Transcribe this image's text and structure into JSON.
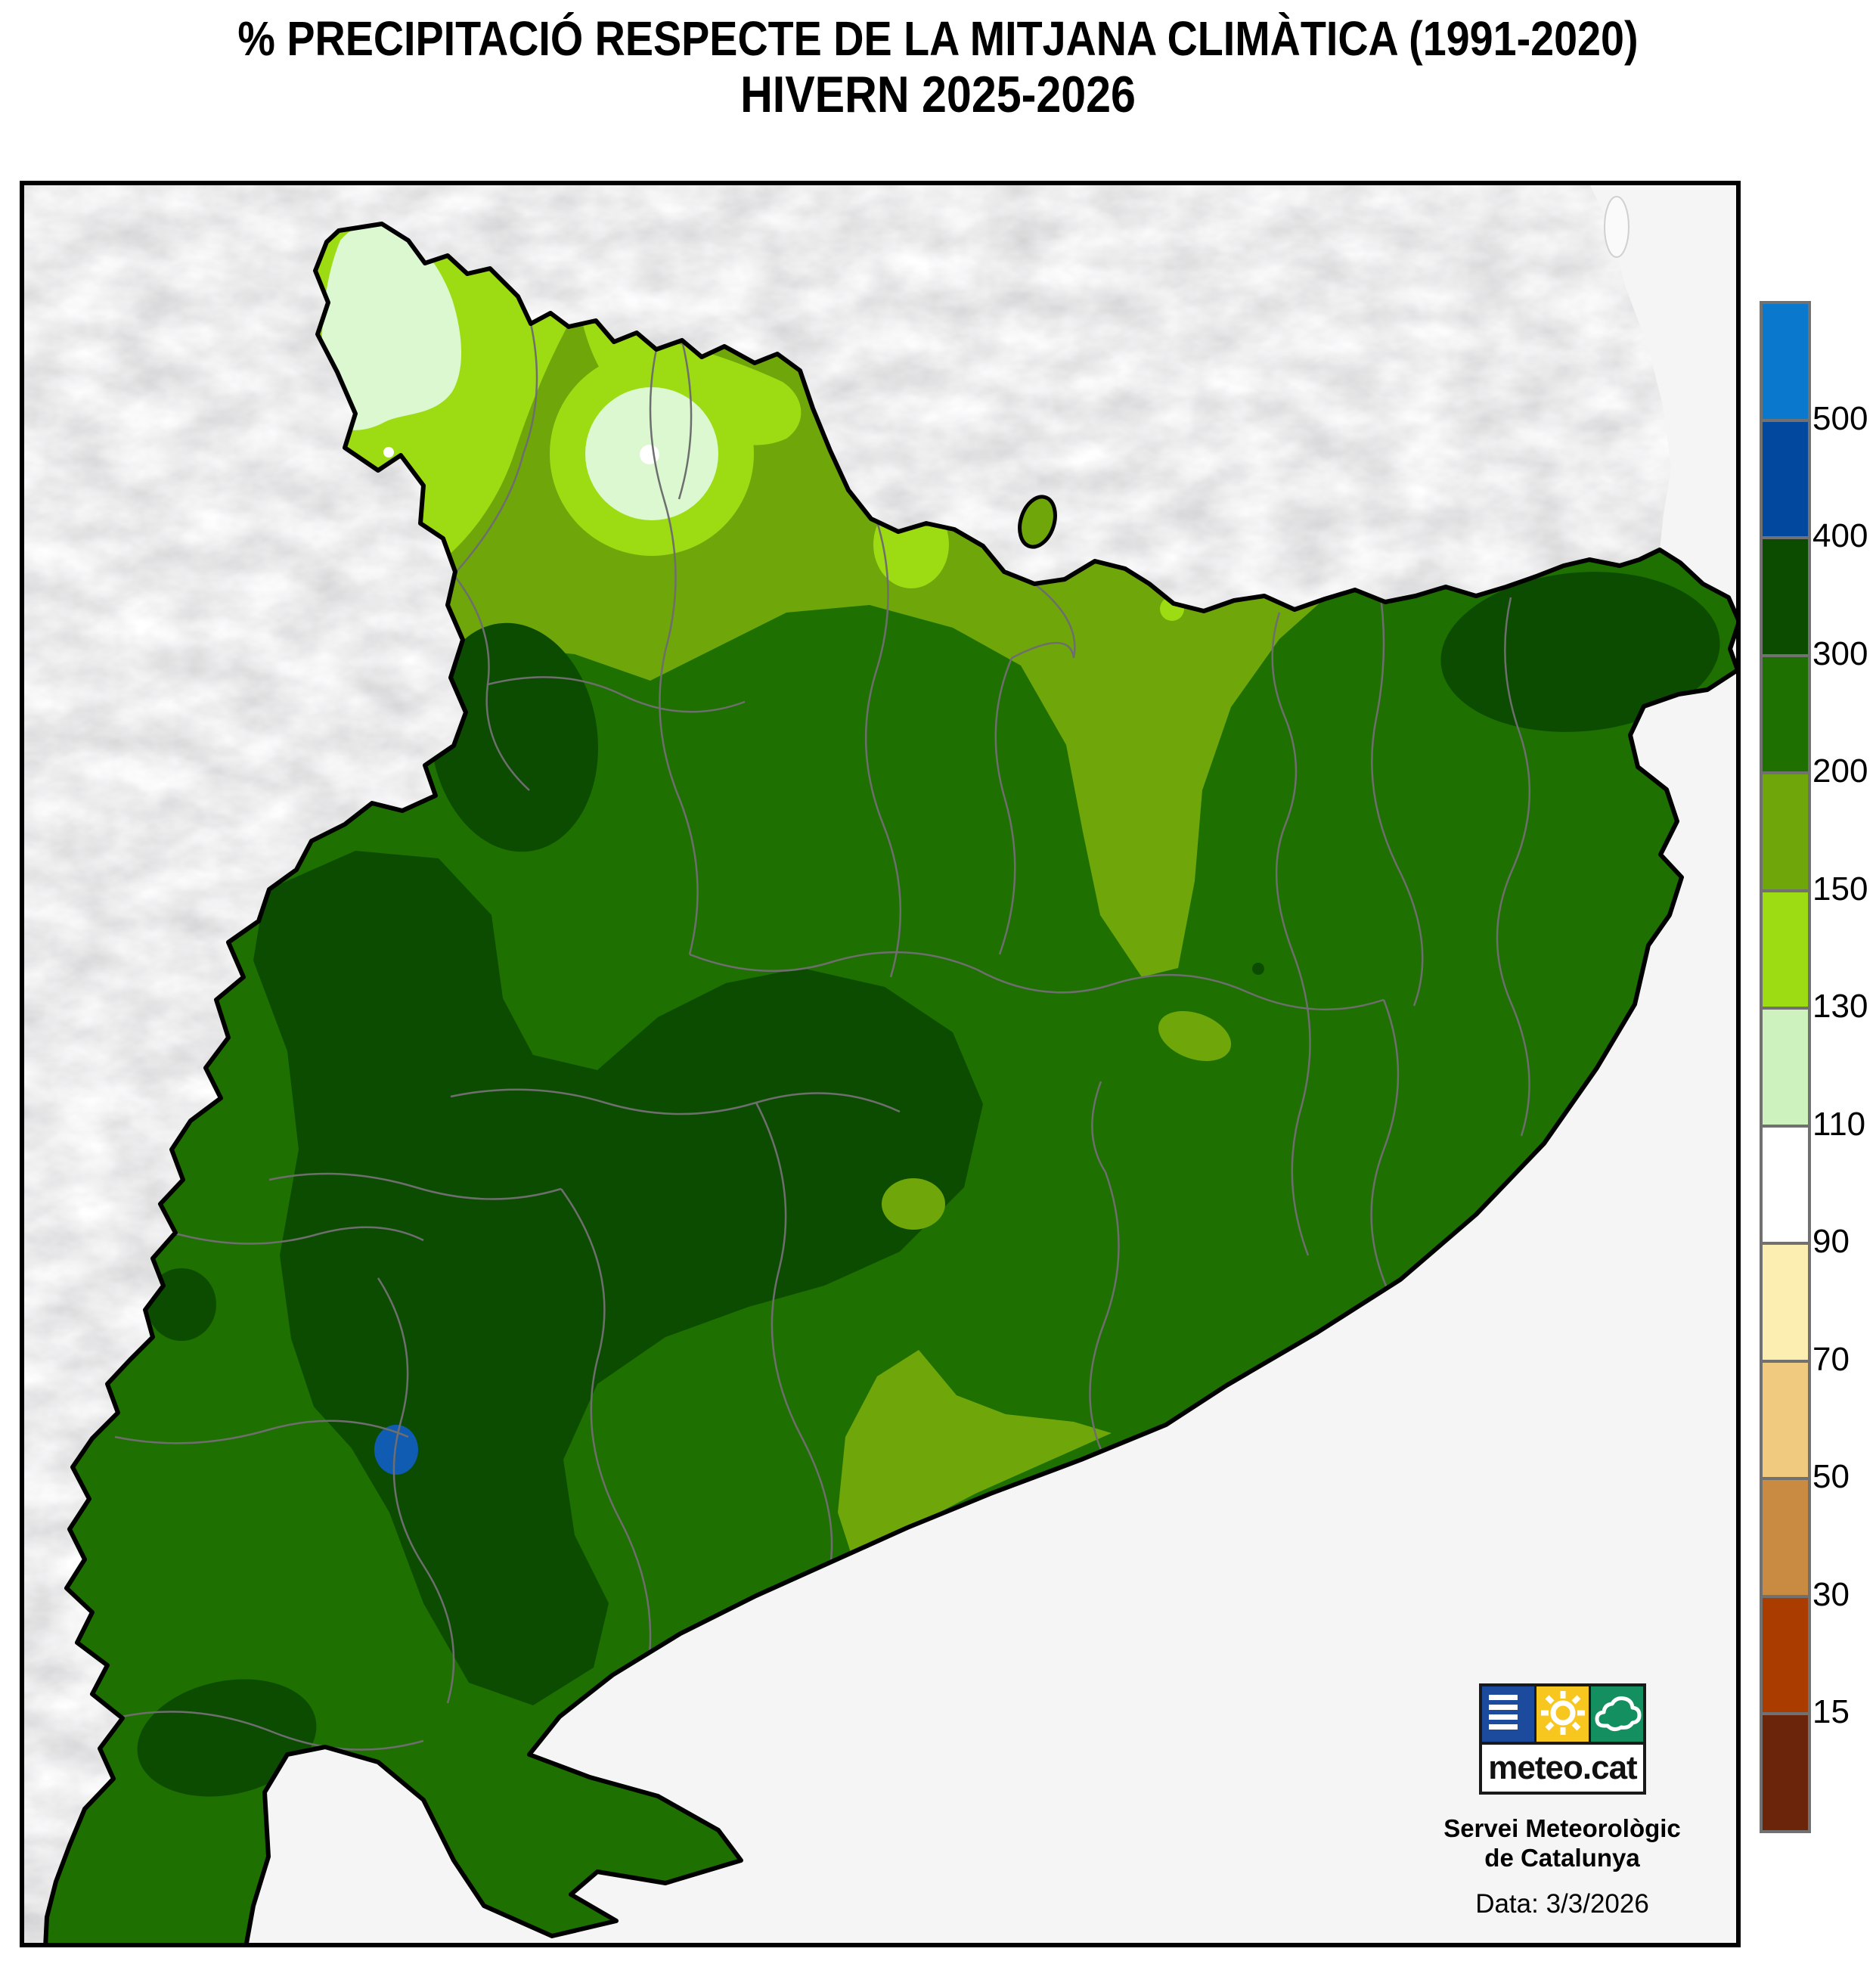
{
  "title": {
    "line1": "% PRECIPITACIÓ RESPECTE DE LA MITJANA CLIMÀTICA (1991-2020)",
    "line2": "HIVERN 2025-2026"
  },
  "legend": {
    "tick_labels": [
      "500",
      "400",
      "300",
      "200",
      "150",
      "130",
      "110",
      "90",
      "70",
      "50",
      "30",
      "15"
    ],
    "band_colors": [
      "#0a78cd",
      "#02489f",
      "#0c4c00",
      "#1e7000",
      "#6fa60a",
      "#9ddc12",
      "#cdf2bd",
      "#ffffff",
      "#fcedb0",
      "#f0ca7e",
      "#c98a42",
      "#aa3c00",
      "#6b250a"
    ],
    "border_color": "#717171"
  },
  "palette": {
    "medium_green": "#1e7000",
    "dark_green": "#0c4c00",
    "olive_green": "#6fa60a",
    "bright_green": "#9ddc12",
    "pale_green": "#dcf8d0",
    "white_spot": "#ffffff",
    "blue_spot": "#0f5cb2",
    "sea": "#f5f5f5",
    "lagoon": "#fafafa",
    "outline": "#000000",
    "comarca_line": "#6e6e6e",
    "frame": "#000000"
  },
  "branding": {
    "logo_text": "meteo.cat",
    "org_line1": "Servei Meteorològic",
    "org_line2": "de Catalunya",
    "date_text": "Data: 3/3/2026",
    "logo_blue": "#1c4a9c",
    "logo_yellow": "#f7c71f",
    "logo_green": "#149060"
  }
}
